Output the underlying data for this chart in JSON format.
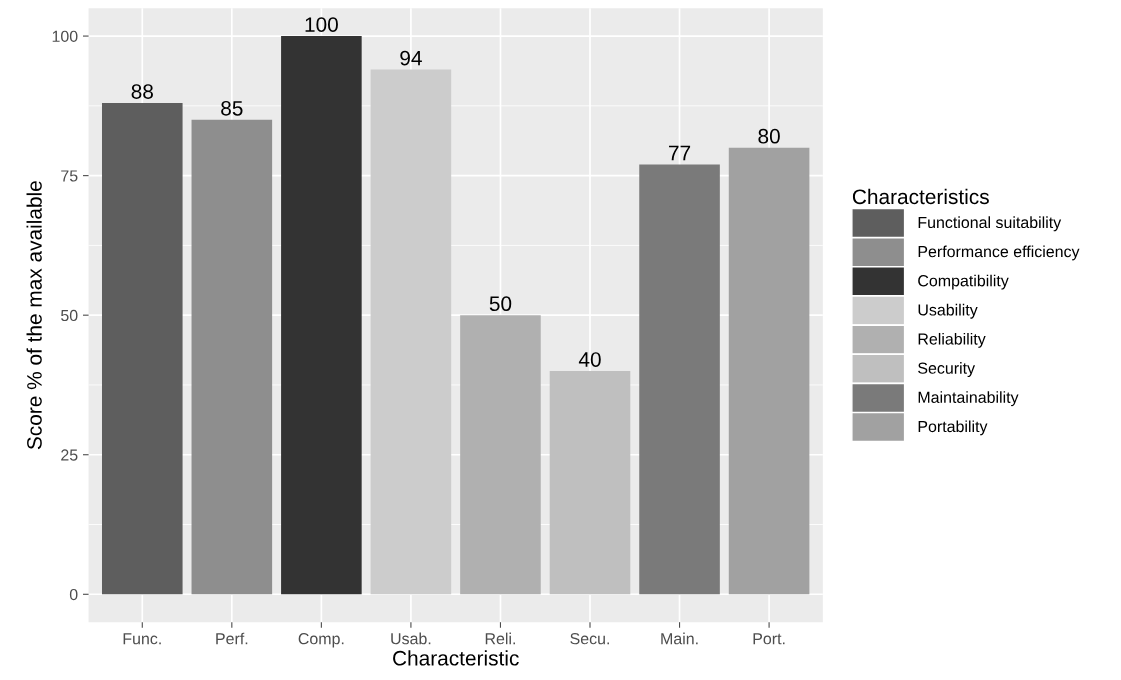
{
  "chart_data": {
    "type": "bar",
    "xlabel": "Characteristic",
    "ylabel": "Score % of the max available",
    "legend_title": "Characteristics",
    "categories": [
      "Func.",
      "Perf.",
      "Comp.",
      "Usab.",
      "Reli.",
      "Secu.",
      "Main.",
      "Port."
    ],
    "series": [
      {
        "name": "Functional suitability",
        "color": "#5e5e5e",
        "values": [
          88,
          null,
          null,
          null,
          null,
          null,
          null,
          null
        ]
      },
      {
        "name": "Performance efficiency",
        "color": "#8e8e8e",
        "values": [
          null,
          85,
          null,
          null,
          null,
          null,
          null,
          null
        ]
      },
      {
        "name": "Compatibility",
        "color": "#333333",
        "values": [
          null,
          null,
          100,
          null,
          null,
          null,
          null,
          null
        ]
      },
      {
        "name": "Usability",
        "color": "#cccccc",
        "values": [
          null,
          null,
          null,
          94,
          null,
          null,
          null,
          null
        ]
      },
      {
        "name": "Reliability",
        "color": "#b0b0b0",
        "values": [
          null,
          null,
          null,
          null,
          50,
          null,
          null,
          null
        ]
      },
      {
        "name": "Security",
        "color": "#bfbfbf",
        "values": [
          null,
          null,
          null,
          null,
          null,
          40,
          null,
          null
        ]
      },
      {
        "name": "Maintainability",
        "color": "#7a7a7a",
        "values": [
          null,
          null,
          null,
          null,
          null,
          null,
          77,
          null
        ]
      },
      {
        "name": "Portability",
        "color": "#a1a1a1",
        "values": [
          null,
          null,
          null,
          null,
          null,
          null,
          null,
          80
        ]
      }
    ],
    "ylim": [
      -5,
      105
    ],
    "yticks": [
      0,
      25,
      50,
      75,
      100
    ],
    "grid": true,
    "data_labels": true,
    "legend": "right"
  }
}
